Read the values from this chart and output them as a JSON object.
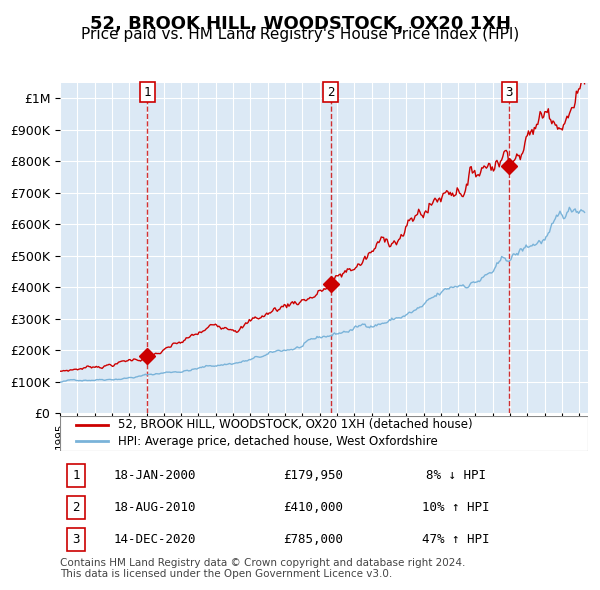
{
  "title": "52, BROOK HILL, WOODSTOCK, OX20 1XH",
  "subtitle": "Price paid vs. HM Land Registry's House Price Index (HPI)",
  "title_fontsize": 13,
  "subtitle_fontsize": 11,
  "bg_color": "#dce9f5",
  "plot_bg_color": "#dce9f5",
  "hpi_color": "#7ab3d9",
  "price_color": "#cc0000",
  "sale_marker_color": "#cc0000",
  "sale1": {
    "date_num": 2000.05,
    "price": 179950,
    "label": "1"
  },
  "sale2": {
    "date_num": 2010.63,
    "price": 410000,
    "label": "2"
  },
  "sale3": {
    "date_num": 2020.95,
    "price": 785000,
    "label": "3"
  },
  "vline_color": "#cc0000",
  "grid_color": "#ffffff",
  "legend_label_price": "52, BROOK HILL, WOODSTOCK, OX20 1XH (detached house)",
  "legend_label_hpi": "HPI: Average price, detached house, West Oxfordshire",
  "table_rows": [
    {
      "num": "1",
      "date": "18-JAN-2000",
      "price": "£179,950",
      "change": "8% ↓ HPI"
    },
    {
      "num": "2",
      "date": "18-AUG-2010",
      "price": "£410,000",
      "change": "10% ↑ HPI"
    },
    {
      "num": "3",
      "date": "14-DEC-2020",
      "price": "£785,000",
      "change": "47% ↑ HPI"
    }
  ],
  "footer": "Contains HM Land Registry data © Crown copyright and database right 2024.\nThis data is licensed under the Open Government Licence v3.0.",
  "xmin": 1995.0,
  "xmax": 2025.5,
  "ymin": 0,
  "ymax": 1050000
}
